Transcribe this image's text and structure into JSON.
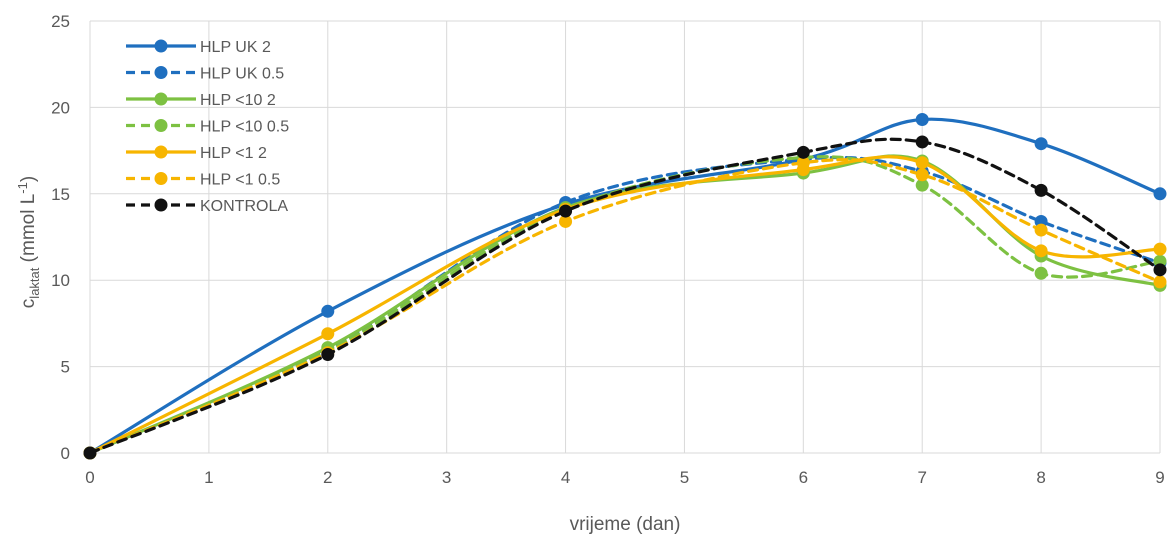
{
  "chart_data": {
    "type": "line",
    "title": "",
    "xlabel": "vrijeme (dan)",
    "ylabel": {
      "base": "c",
      "subscript": "laktat",
      "unit_prefix": " (mmol L",
      "unit_sup": "-1",
      "unit_suffix": ")"
    },
    "xlim": [
      0,
      9
    ],
    "ylim": [
      0,
      25
    ],
    "x_ticks": [
      "0",
      "1",
      "2",
      "3",
      "4",
      "5",
      "6",
      "7",
      "8",
      "9"
    ],
    "y_ticks": [
      "0",
      "5",
      "10",
      "15",
      "20",
      "25"
    ],
    "grid": true,
    "legend_position": "top-left",
    "x": [
      0,
      2,
      4,
      6,
      7,
      8,
      9
    ],
    "series": [
      {
        "name": "HLP UK 2",
        "color": "#1f6fbf",
        "dash": "solid",
        "values": [
          0,
          8.2,
          14.4,
          17.0,
          19.3,
          17.9,
          15.0
        ]
      },
      {
        "name": "HLP UK 0.5",
        "color": "#1f6fbf",
        "dash": "dashed",
        "values": [
          0,
          6.0,
          14.5,
          17.0,
          16.3,
          13.4,
          11.0
        ]
      },
      {
        "name": "HLP <10 2",
        "color": "#7dc142",
        "dash": "solid",
        "values": [
          0,
          6.1,
          14.2,
          16.2,
          16.9,
          11.4,
          9.7
        ]
      },
      {
        "name": "HLP <10 0.5",
        "color": "#7dc142",
        "dash": "dashed",
        "values": [
          0,
          5.9,
          14.1,
          17.1,
          15.5,
          10.4,
          11.1
        ]
      },
      {
        "name": "HLP <1 2",
        "color": "#f7b500",
        "dash": "solid",
        "values": [
          0,
          6.9,
          14.1,
          16.4,
          16.8,
          11.7,
          11.8
        ]
      },
      {
        "name": "HLP <1 0.5",
        "color": "#f7b500",
        "dash": "dashed",
        "values": [
          0,
          5.8,
          13.4,
          16.8,
          16.1,
          12.9,
          9.9
        ]
      },
      {
        "name": "KONTROLA",
        "color": "#111111",
        "dash": "dashed",
        "values": [
          0,
          5.7,
          14.0,
          17.4,
          18.0,
          15.2,
          10.6
        ]
      }
    ]
  }
}
